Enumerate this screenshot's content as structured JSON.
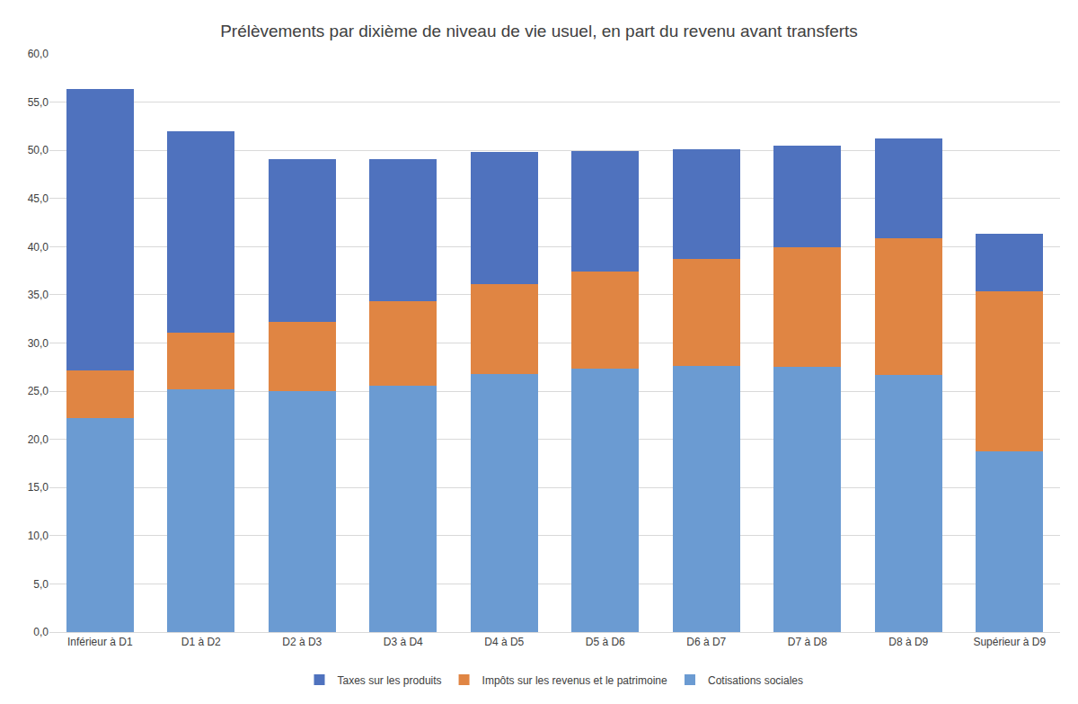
{
  "chart_data": {
    "type": "bar",
    "title": "Prélèvements par dixième de niveau de vie usuel, en part du revenu avant transferts",
    "categories": [
      "Inférieur à D1",
      "D1 à D2",
      "D2 à D3",
      "D3 à D4",
      "D4 à D5",
      "D5 à D6",
      "D6 à D7",
      "D7 à D8",
      "D8 à D9",
      "Supérieur à D9"
    ],
    "series": [
      {
        "name": "Cotisations sociales",
        "color": "#6b9bd2",
        "values": [
          22.2,
          25.2,
          25.0,
          25.6,
          26.8,
          27.3,
          27.6,
          27.5,
          26.7,
          18.8
        ]
      },
      {
        "name": "Impôts sur les revenus et le patrimoine",
        "color": "#e08543",
        "values": [
          5.0,
          5.9,
          7.2,
          8.7,
          9.3,
          10.1,
          11.1,
          12.4,
          14.2,
          16.6
        ]
      },
      {
        "name": "Taxes sur les produits",
        "color": "#4f72be",
        "values": [
          29.2,
          20.9,
          16.9,
          14.8,
          13.7,
          12.5,
          11.4,
          10.6,
          10.3,
          5.9
        ]
      }
    ],
    "stacked": true,
    "ylim": [
      0,
      60
    ],
    "yticks": [
      {
        "value": 0,
        "label": "0,0"
      },
      {
        "value": 5,
        "label": "5,0"
      },
      {
        "value": 10,
        "label": "10,0"
      },
      {
        "value": 15,
        "label": "15,0"
      },
      {
        "value": 20,
        "label": "20,0"
      },
      {
        "value": 25,
        "label": "25,0"
      },
      {
        "value": 30,
        "label": "30,0"
      },
      {
        "value": 35,
        "label": "35,0"
      },
      {
        "value": 40,
        "label": "40,0"
      },
      {
        "value": 45,
        "label": "45,0"
      },
      {
        "value": 50,
        "label": "50,0"
      },
      {
        "value": 55,
        "label": "55,0"
      },
      {
        "value": 60,
        "label": "60,0"
      }
    ],
    "grid": true,
    "legend": "bottom"
  }
}
